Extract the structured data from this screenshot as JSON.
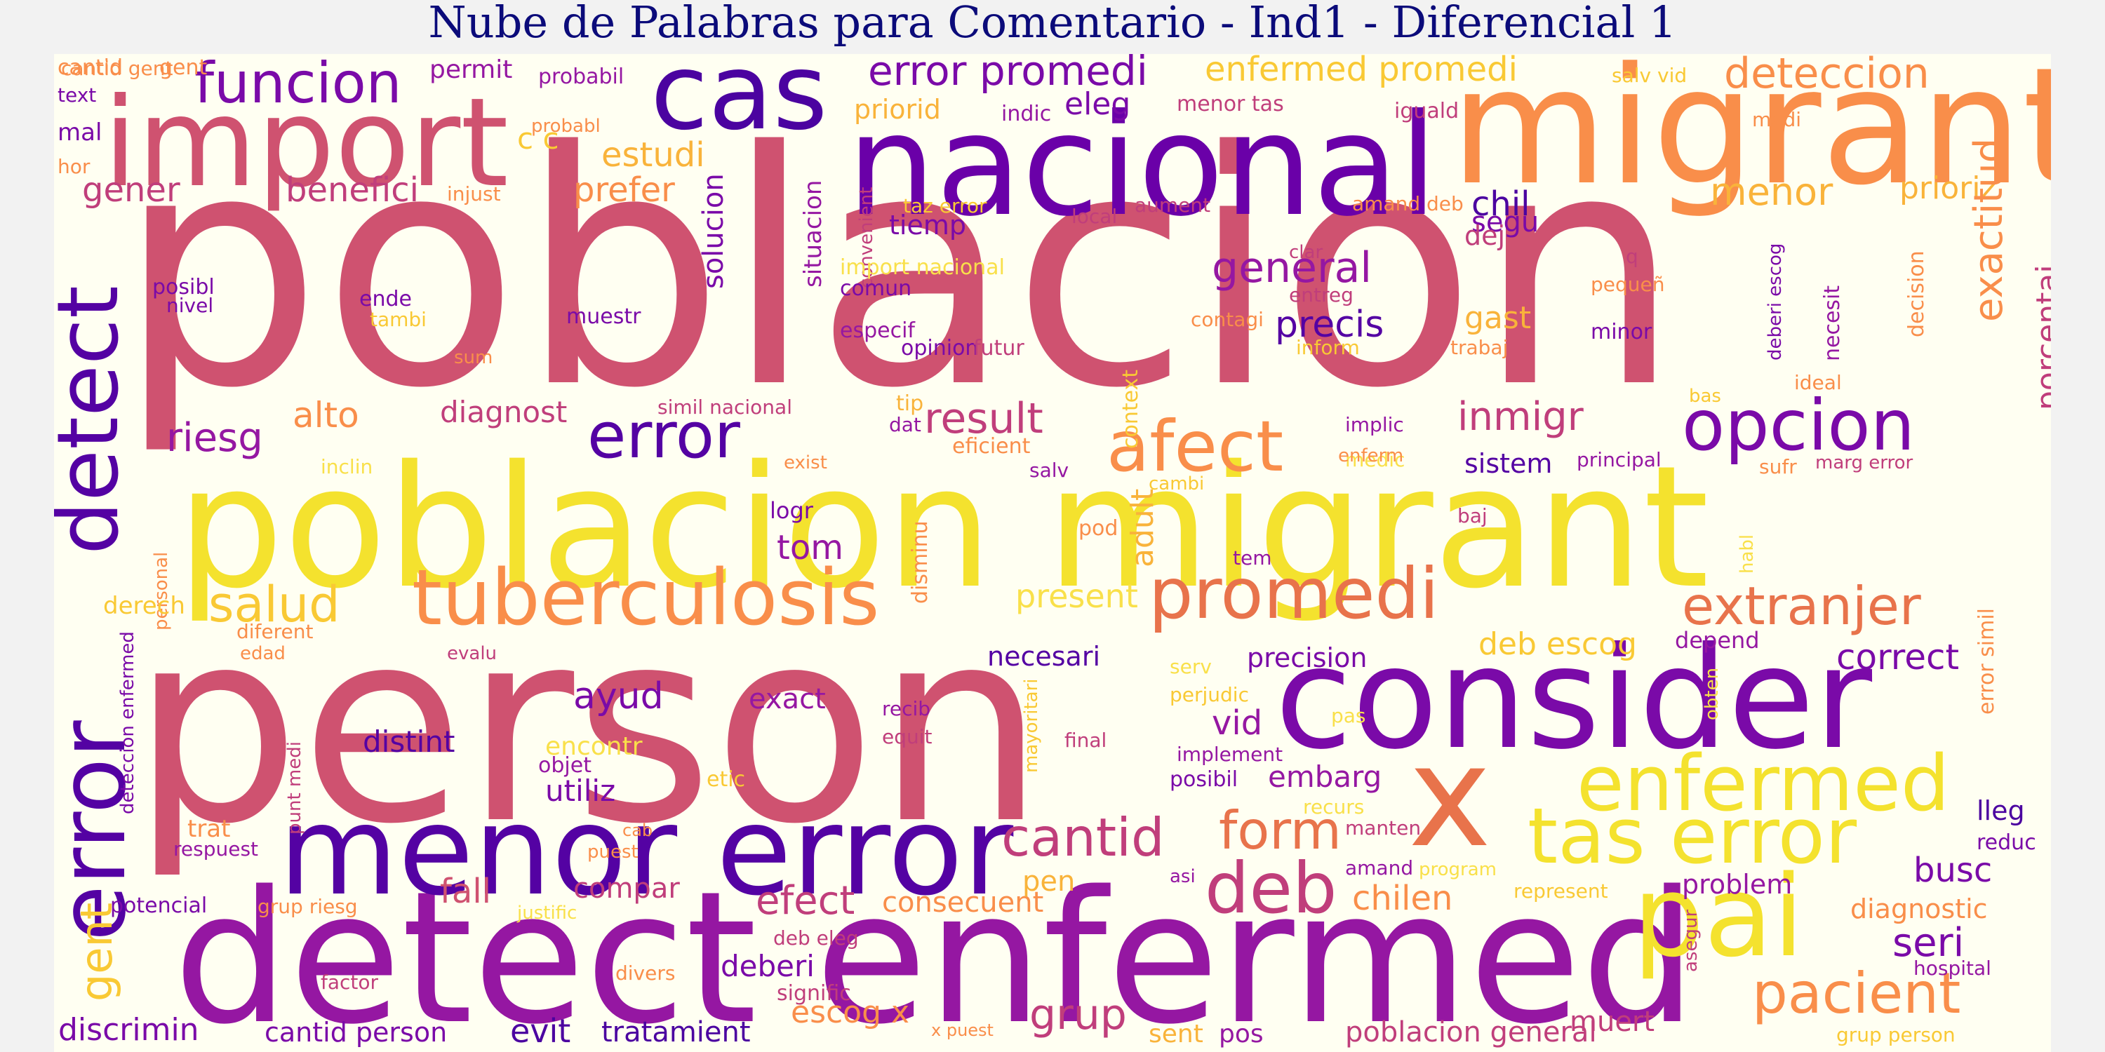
{
  "title": "Nube de Palabras para Comentario - Ind1 - Diferencial 1",
  "words": [
    {
      "text": "poblacion",
      "color": "#cf5270"
    },
    {
      "text": "person",
      "color": "#cf5270"
    },
    {
      "text": "poblacion migrant",
      "color": "#f4e22e"
    },
    {
      "text": "detect enfermed",
      "color": "#9517a2"
    },
    {
      "text": "migrant",
      "color": "#f98e4a"
    },
    {
      "text": "nacional",
      "color": "#6a00a8"
    },
    {
      "text": "consider",
      "color": "#7a0aa8"
    },
    {
      "text": "import",
      "color": "#cf5270"
    },
    {
      "text": "cas",
      "color": "#4b03a0"
    },
    {
      "text": "menor error",
      "color": "#5402a3"
    },
    {
      "text": "x",
      "color": "#e8734b"
    },
    {
      "text": "pai",
      "color": "#f4e22e"
    },
    {
      "text": "detect",
      "color": "#5402a3"
    },
    {
      "text": "error",
      "color": "#5402a3"
    },
    {
      "text": "tuberculosis",
      "color": "#f98e4a"
    },
    {
      "text": "enfermed",
      "color": "#f4e22e"
    },
    {
      "text": "tas error",
      "color": "#f4e22e"
    },
    {
      "text": "opcion",
      "color": "#7a0aa8"
    },
    {
      "text": "afect",
      "color": "#f98e4a"
    },
    {
      "text": "promedi",
      "color": "#e8734b"
    },
    {
      "text": "deb",
      "color": "#c03e7b"
    },
    {
      "text": "pacient",
      "color": "#f98e4a"
    },
    {
      "text": "error",
      "color": "#5402a3"
    },
    {
      "text": "funcion",
      "color": "#7a0aa8"
    },
    {
      "text": "error promedi",
      "color": "#7a0aa8"
    },
    {
      "text": "deteccion",
      "color": "#f98e4a"
    },
    {
      "text": "enfermed promedi",
      "color": "#f9c934"
    },
    {
      "text": "extranjer",
      "color": "#e8734b"
    },
    {
      "text": "cantid",
      "color": "#c03e7b"
    },
    {
      "text": "form",
      "color": "#e8734b"
    },
    {
      "text": "salud",
      "color": "#f9c934"
    },
    {
      "text": "general",
      "color": "#9517a2"
    },
    {
      "text": "result",
      "color": "#c03e7b"
    },
    {
      "text": "inmigr",
      "color": "#c03e7b"
    },
    {
      "text": "riesg",
      "color": "#9517a2"
    },
    {
      "text": "alto",
      "color": "#f98e4a"
    },
    {
      "text": "estudi",
      "color": "#f9b33a"
    },
    {
      "text": "prefer",
      "color": "#f98e4a"
    },
    {
      "text": "gener",
      "color": "#c03e7b"
    },
    {
      "text": "benefici",
      "color": "#c03e7b"
    },
    {
      "text": "menor",
      "color": "#f9b33a"
    },
    {
      "text": "prioriz",
      "color": "#f9b33a"
    },
    {
      "text": "exactitud",
      "color": "#f98e4a"
    },
    {
      "text": "porcentaj",
      "color": "#c03e7b"
    },
    {
      "text": "chil",
      "color": "#4b03a0"
    },
    {
      "text": "precis",
      "color": "#5402a3"
    },
    {
      "text": "gast",
      "color": "#f9b33a"
    },
    {
      "text": "ayud",
      "color": "#7a0aa8"
    },
    {
      "text": "exact",
      "color": "#9517a2"
    },
    {
      "text": "distint",
      "color": "#5402a3"
    },
    {
      "text": "vid",
      "color": "#9517a2"
    },
    {
      "text": "embarg",
      "color": "#9517a2"
    },
    {
      "text": "utiliz",
      "color": "#7a0aa8"
    },
    {
      "text": "efect",
      "color": "#c03e7b"
    },
    {
      "text": "consecuent",
      "color": "#f98e4a"
    },
    {
      "text": "fall",
      "color": "#cf5270"
    },
    {
      "text": "compar",
      "color": "#c03e7b"
    },
    {
      "text": "chilen",
      "color": "#f98e4a"
    },
    {
      "text": "pen",
      "color": "#f9b33a"
    },
    {
      "text": "busc",
      "color": "#7a0aa8"
    },
    {
      "text": "seri",
      "color": "#7a0aa8"
    },
    {
      "text": "problem",
      "color": "#9517a2"
    },
    {
      "text": "diagnostic",
      "color": "#f98e4a"
    },
    {
      "text": "lleg",
      "color": "#4b03a0"
    },
    {
      "text": "correct",
      "color": "#7a0aa8"
    },
    {
      "text": "deb escog",
      "color": "#f9c934"
    },
    {
      "text": "precision",
      "color": "#7a0aa8"
    },
    {
      "text": "gent",
      "color": "#f9c934"
    },
    {
      "text": "discrimin",
      "color": "#7a0aa8"
    },
    {
      "text": "cantid person",
      "color": "#7a0aa8"
    },
    {
      "text": "evit",
      "color": "#4b03a0"
    },
    {
      "text": "tratamient",
      "color": "#4b03a0"
    },
    {
      "text": "escog x",
      "color": "#f98e4a"
    },
    {
      "text": "grup",
      "color": "#c03e7b"
    },
    {
      "text": "sent",
      "color": "#f9b33a"
    },
    {
      "text": "pos",
      "color": "#9517a2"
    },
    {
      "text": "poblacion general",
      "color": "#c03e7b"
    },
    {
      "text": "muert",
      "color": "#c03e7b"
    },
    {
      "text": "deberi",
      "color": "#7a0aa8"
    },
    {
      "text": "tom",
      "color": "#9517a2"
    },
    {
      "text": "present",
      "color": "#f9e04a"
    },
    {
      "text": "necesari",
      "color": "#5402a3"
    },
    {
      "text": "diagnost",
      "color": "#c03e7b"
    },
    {
      "text": "tiemp",
      "color": "#7a0aa8"
    },
    {
      "text": "solucion",
      "color": "#7a0aa8"
    },
    {
      "text": "eleg",
      "color": "#7a0aa8"
    },
    {
      "text": "priorid",
      "color": "#f9b33a"
    },
    {
      "text": "segu",
      "color": "#7a0aa8"
    },
    {
      "text": "dej",
      "color": "#c03e7b"
    },
    {
      "text": "sistem",
      "color": "#5402a3"
    },
    {
      "text": "adult",
      "color": "#f9b33a"
    },
    {
      "text": "c c",
      "color": "#f9c934"
    },
    {
      "text": "permit",
      "color": "#9517a2"
    },
    {
      "text": "mal",
      "color": "#7a0aa8"
    },
    {
      "text": "cantid",
      "color": "#f98e4a"
    },
    {
      "text": "gent",
      "color": "#f98e4a"
    },
    {
      "text": "text",
      "color": "#7a0aa8"
    },
    {
      "text": "hor",
      "color": "#f98e4a"
    },
    {
      "text": "probabil",
      "color": "#9517a2"
    },
    {
      "text": "probabl",
      "color": "#f98e4a"
    },
    {
      "text": "indic",
      "color": "#9517a2"
    },
    {
      "text": "menor tas",
      "color": "#c03e7b"
    },
    {
      "text": "iguald",
      "color": "#c03e7b"
    },
    {
      "text": "salv vid",
      "color": "#f9c934"
    },
    {
      "text": "medi",
      "color": "#f98e4a"
    },
    {
      "text": "injust",
      "color": "#f98e4a"
    },
    {
      "text": "situacion",
      "color": "#9517a2"
    },
    {
      "text": "convenient",
      "color": "#c03e7b"
    },
    {
      "text": "taz error",
      "color": "#f9c934"
    },
    {
      "text": "local",
      "color": "#c03e7b"
    },
    {
      "text": "aument",
      "color": "#c03e7b"
    },
    {
      "text": "amand deb",
      "color": "#f98e4a"
    },
    {
      "text": "posibl",
      "color": "#7a0aa8"
    },
    {
      "text": "nivel",
      "color": "#7a0aa8"
    },
    {
      "text": "ende",
      "color": "#7a0aa8"
    },
    {
      "text": "tambi",
      "color": "#f9c934"
    },
    {
      "text": "muestr",
      "color": "#7a0aa8"
    },
    {
      "text": "import nacional",
      "color": "#f9e04a"
    },
    {
      "text": "comun",
      "color": "#7a0aa8"
    },
    {
      "text": "especif",
      "color": "#9517a2"
    },
    {
      "text": "opinion",
      "color": "#7a0aa8"
    },
    {
      "text": "futur",
      "color": "#c03e7b"
    },
    {
      "text": "context",
      "color": "#f9c934"
    },
    {
      "text": "contagi",
      "color": "#f98e4a"
    },
    {
      "text": "entreg",
      "color": "#c03e7b"
    },
    {
      "text": "clar",
      "color": "#c03e7b"
    },
    {
      "text": "inform",
      "color": "#f9c934"
    },
    {
      "text": "trabaj",
      "color": "#f98e4a"
    },
    {
      "text": "q",
      "color": "#c03e7b"
    },
    {
      "text": "pequeñ",
      "color": "#f98e4a"
    },
    {
      "text": "minor",
      "color": "#7a0aa8"
    },
    {
      "text": "deberi escog",
      "color": "#7a0aa8"
    },
    {
      "text": "necesit",
      "color": "#9517a2"
    },
    {
      "text": "decision",
      "color": "#f98e4a"
    },
    {
      "text": "ideal",
      "color": "#f98e4a"
    },
    {
      "text": "bas",
      "color": "#f9c934"
    },
    {
      "text": "sum",
      "color": "#f98e4a"
    },
    {
      "text": "tip",
      "color": "#f9b33a"
    },
    {
      "text": "simil nacional",
      "color": "#c03e7b"
    },
    {
      "text": "dat",
      "color": "#9517a2"
    },
    {
      "text": "eficient",
      "color": "#f98e4a"
    },
    {
      "text": "implic",
      "color": "#9517a2"
    },
    {
      "text": "medic",
      "color": "#f9e04a"
    },
    {
      "text": "enferm",
      "color": "#f98e4a"
    },
    {
      "text": "principal",
      "color": "#9517a2"
    },
    {
      "text": "sufr",
      "color": "#f98e4a"
    },
    {
      "text": "marg error",
      "color": "#c03e7b"
    },
    {
      "text": "inclin",
      "color": "#f9e04a"
    },
    {
      "text": "exist",
      "color": "#f98e4a"
    },
    {
      "text": "disminu",
      "color": "#f98e4a"
    },
    {
      "text": "salv",
      "color": "#9517a2"
    },
    {
      "text": "cambi",
      "color": "#f9c934"
    },
    {
      "text": "logr",
      "color": "#7a0aa8"
    },
    {
      "text": "pod",
      "color": "#f98e4a"
    },
    {
      "text": "tem",
      "color": "#9517a2"
    },
    {
      "text": "baj",
      "color": "#c03e7b"
    },
    {
      "text": "habl",
      "color": "#f9e04a"
    },
    {
      "text": "personal",
      "color": "#f98e4a"
    },
    {
      "text": "derech",
      "color": "#f9c934"
    },
    {
      "text": "diferent",
      "color": "#f98e4a"
    },
    {
      "text": "edad",
      "color": "#f98e4a"
    },
    {
      "text": "evalu",
      "color": "#c03e7b"
    },
    {
      "text": "deteccion enfermed",
      "color": "#7a0aa8"
    },
    {
      "text": "punt medi",
      "color": "#c03e7b"
    },
    {
      "text": "serv",
      "color": "#f9e04a"
    },
    {
      "text": "perjudic",
      "color": "#f9c934"
    },
    {
      "text": "recib",
      "color": "#9517a2"
    },
    {
      "text": "equit",
      "color": "#c03e7b"
    },
    {
      "text": "mayoritari",
      "color": "#f9c934"
    },
    {
      "text": "final",
      "color": "#c03e7b"
    },
    {
      "text": "implement",
      "color": "#9517a2"
    },
    {
      "text": "posibil",
      "color": "#7a0aa8"
    },
    {
      "text": "pas",
      "color": "#f9e04a"
    },
    {
      "text": "depend",
      "color": "#9517a2"
    },
    {
      "text": "obten",
      "color": "#f9e04a"
    },
    {
      "text": "error simil",
      "color": "#f98e4a"
    },
    {
      "text": "encontr",
      "color": "#f9e04a"
    },
    {
      "text": "objet",
      "color": "#9517a2"
    },
    {
      "text": "etic",
      "color": "#f9c934"
    },
    {
      "text": "recurs",
      "color": "#f9e04a"
    },
    {
      "text": "manten",
      "color": "#c03e7b"
    },
    {
      "text": "reduc",
      "color": "#7a0aa8"
    },
    {
      "text": "trat",
      "color": "#f98e4a"
    },
    {
      "text": "respuest",
      "color": "#9517a2"
    },
    {
      "text": "cab",
      "color": "#f98e4a"
    },
    {
      "text": "puest",
      "color": "#f98e4a"
    },
    {
      "text": "asi",
      "color": "#9517a2"
    },
    {
      "text": "amand",
      "color": "#9517a2"
    },
    {
      "text": "program",
      "color": "#f9e04a"
    },
    {
      "text": "represent",
      "color": "#f9c934"
    },
    {
      "text": "asegur",
      "color": "#c03e7b"
    },
    {
      "text": "hospital",
      "color": "#9517a2"
    },
    {
      "text": "potencial",
      "color": "#7a0aa8"
    },
    {
      "text": "grup riesg",
      "color": "#f98e4a"
    },
    {
      "text": "justific",
      "color": "#f9e04a"
    },
    {
      "text": "deb eleg",
      "color": "#c03e7b"
    },
    {
      "text": "divers",
      "color": "#f98e4a"
    },
    {
      "text": "factor",
      "color": "#c03e7b"
    },
    {
      "text": "signific",
      "color": "#c03e7b"
    },
    {
      "text": "x puest",
      "color": "#f98e4a"
    },
    {
      "text": "grup person",
      "color": "#f9c934"
    },
    {
      "text": "cantid gent",
      "color": "#f98e4a"
    }
  ]
}
